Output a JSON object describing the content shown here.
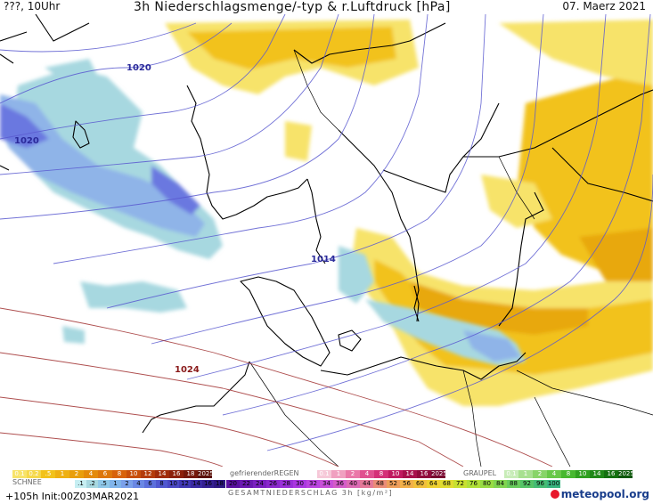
{
  "header": {
    "run_label": "???, 10Uhr",
    "title": "3h Niederschlagsmenge/-typ & r.Luftdruck [hPa]",
    "date": "07. Maerz 2021"
  },
  "isobar_labels": [
    {
      "id": "iso-1020-a",
      "text": "1020",
      "color": "#2a2a9a"
    },
    {
      "id": "iso-1020-b",
      "text": "1020",
      "color": "#2a2a9a"
    },
    {
      "id": "iso-1014",
      "text": "1014",
      "color": "#2a2a9a"
    },
    {
      "id": "iso-1024",
      "text": "1024",
      "color": "#8a1a1a"
    }
  ],
  "legend": {
    "rain_scale": [
      "0.1",
      "0.2",
      ".5",
      "1",
      "2",
      "4",
      "6",
      "8",
      "10",
      "12",
      "14",
      "16",
      "18",
      "2025+"
    ],
    "freezing_rain_label": "gefrierenderREGEN",
    "freezing_rain_scale": [
      "0.1",
      "1",
      "2",
      "4",
      "8",
      "10",
      "14",
      "16",
      "2025+"
    ],
    "graupel_label": "GRAUPEL",
    "graupel_scale": [
      "0.1",
      "1",
      "2",
      "4",
      "8",
      "10",
      "14",
      "16",
      "2025+"
    ],
    "snow_label": "SCHNEE",
    "snow_scale": [
      ".1",
      ".2",
      ".5",
      "1",
      "2",
      "4",
      "6",
      "8",
      "10",
      "12",
      "14",
      "16",
      "18"
    ],
    "total_scale": [
      "20",
      "22",
      "24",
      "26",
      "28",
      "30",
      "32",
      "34",
      "36",
      "40",
      "44",
      "48",
      "52",
      "56",
      "60",
      "64",
      "68",
      "72",
      "76",
      "80",
      "84",
      "88",
      "92",
      "96",
      "100"
    ],
    "total_label": "GESAMTNIEDERSCHLAG 3h [kg/m²]"
  },
  "footer": {
    "forecast": "+105h Init:00Z03MAR2021",
    "brand": "meteopool.org"
  },
  "colors": {
    "rain_light": "#f7e36a",
    "rain_mid": "#f2c21a",
    "rain_heavy": "#e8a80a",
    "snow_light": "#a7d8e0",
    "snow_mid": "#8fb4e8",
    "snow_heavy": "#6a78e0",
    "isobar_low": "#5a5ad0",
    "isobar_high": "#a03030",
    "coast": "#000000"
  }
}
